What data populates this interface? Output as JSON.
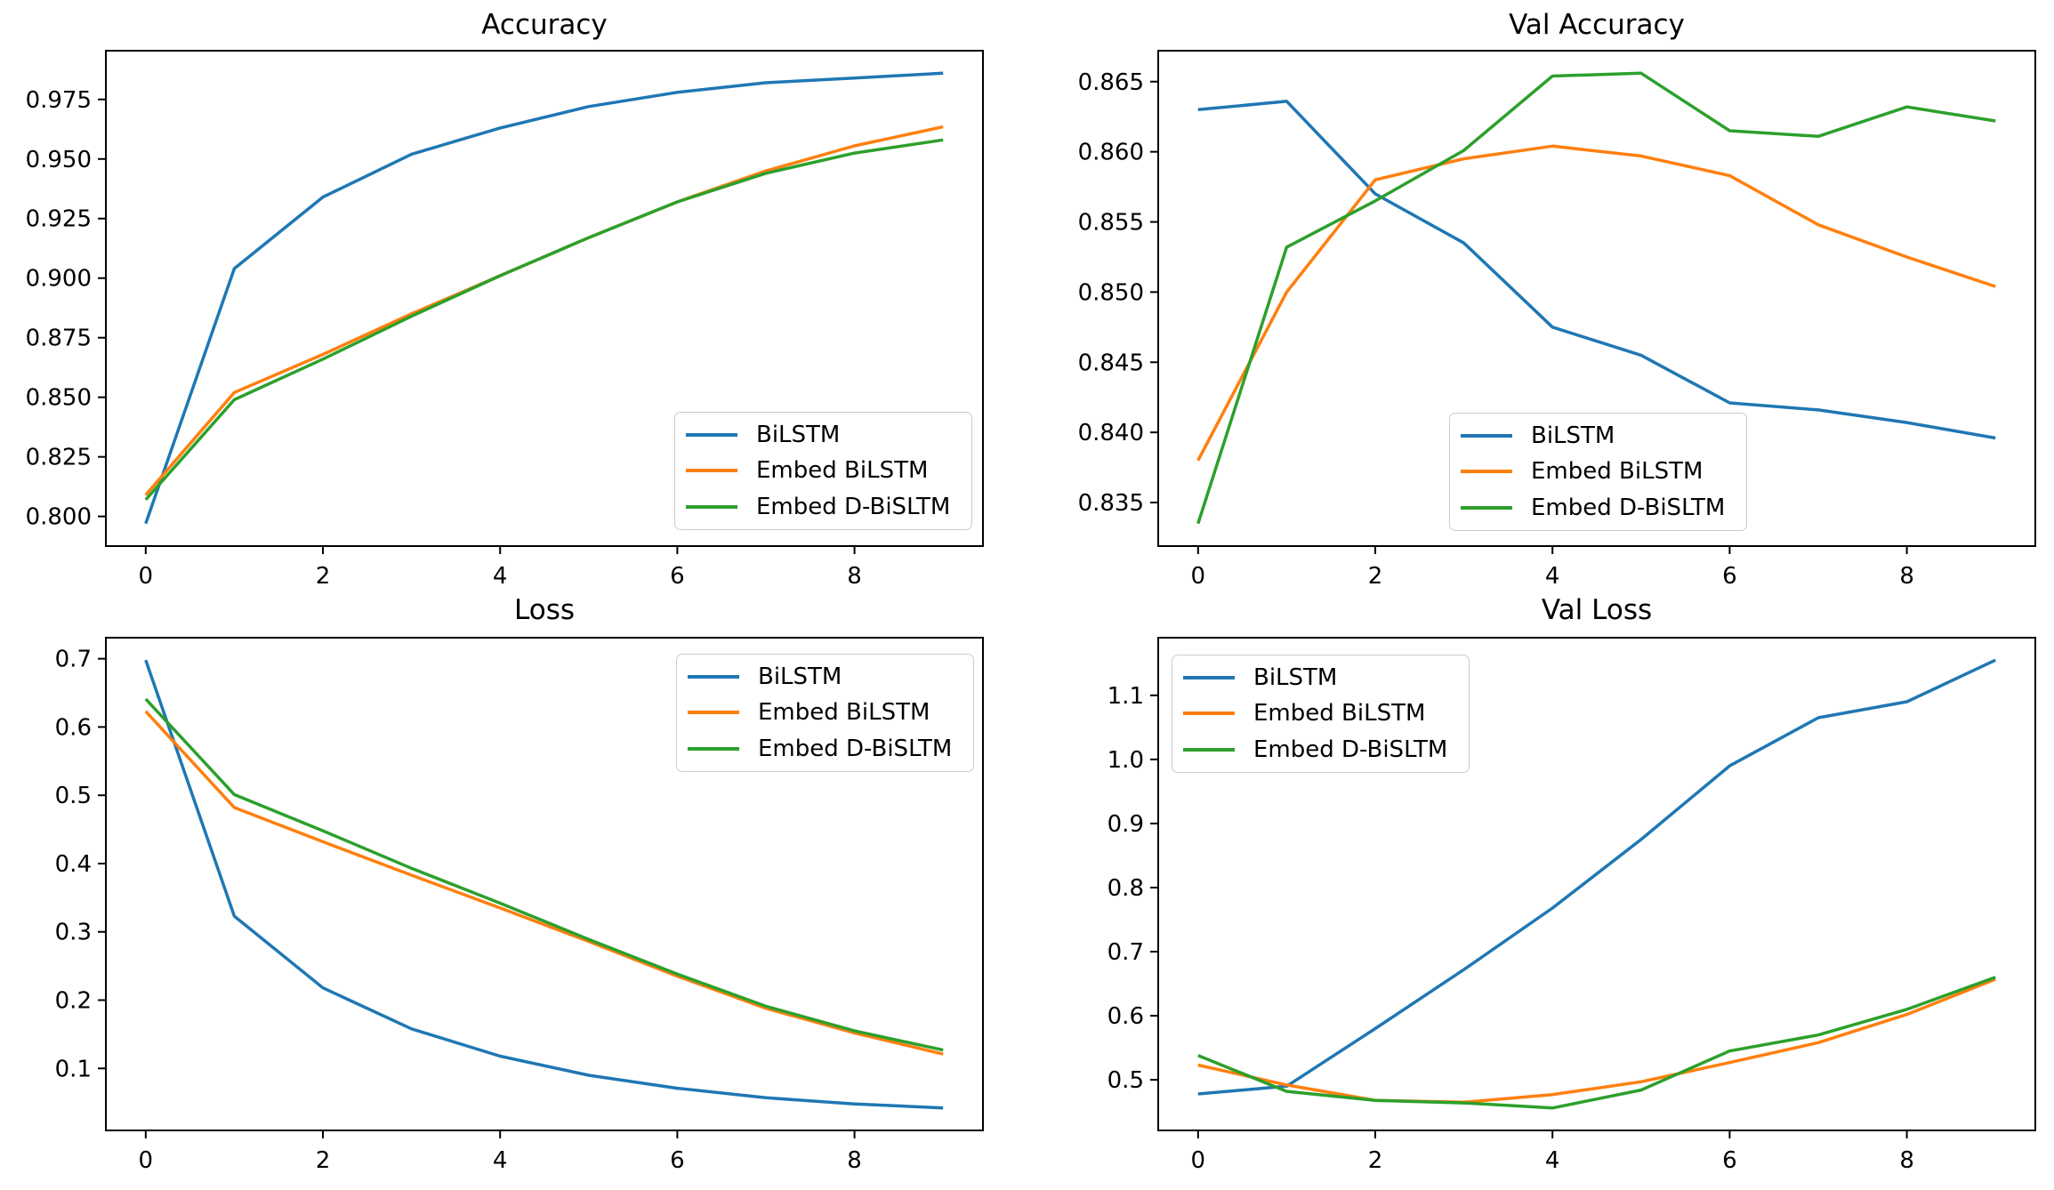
{
  "figure": {
    "background": "#ffffff",
    "text_color": "#000000",
    "spine_color": "#000000"
  },
  "chart_data": [
    {
      "type": "line",
      "title": "Accuracy",
      "xlabel": "",
      "ylabel": "",
      "grid": false,
      "legend_position": "lower right",
      "x": [
        0,
        1,
        2,
        3,
        4,
        5,
        6,
        7,
        8,
        9
      ],
      "xtick_labels": [
        "0",
        "2",
        "4",
        "6",
        "8"
      ],
      "ytick_labels": [
        "0.800",
        "0.825",
        "0.850",
        "0.875",
        "0.900",
        "0.925",
        "0.950",
        "0.975"
      ],
      "ylim": [
        0.78755,
        0.99545
      ],
      "series": [
        {
          "name": "BiLSTM",
          "color": "#1f77b4",
          "values": [
            0.797,
            0.904,
            0.934,
            0.952,
            0.963,
            0.972,
            0.978,
            0.982,
            0.984,
            0.986
          ]
        },
        {
          "name": "Embed BiLSTM",
          "color": "#ff7f0e",
          "values": [
            0.809,
            0.852,
            0.868,
            0.885,
            0.901,
            0.917,
            0.932,
            0.945,
            0.9555,
            0.9635
          ]
        },
        {
          "name": "Embed D-BiSLTM",
          "color": "#2ca02c",
          "values": [
            0.807,
            0.849,
            0.866,
            0.884,
            0.901,
            0.917,
            0.932,
            0.944,
            0.9525,
            0.958
          ]
        }
      ]
    },
    {
      "type": "line",
      "title": "Val Accuracy",
      "xlabel": "",
      "ylabel": "",
      "grid": false,
      "legend_position": "lower center",
      "x": [
        0,
        1,
        2,
        3,
        4,
        5,
        6,
        7,
        8,
        9
      ],
      "xtick_labels": [
        "0",
        "2",
        "4",
        "6",
        "8"
      ],
      "ytick_labels": [
        "0.835",
        "0.840",
        "0.845",
        "0.850",
        "0.855",
        "0.860",
        "0.865"
      ],
      "ylim": [
        0.831895,
        0.867205
      ],
      "series": [
        {
          "name": "BiLSTM",
          "color": "#1f77b4",
          "values": [
            0.863,
            0.8636,
            0.857,
            0.8535,
            0.8475,
            0.8455,
            0.8421,
            0.8416,
            0.8407,
            0.8396
          ]
        },
        {
          "name": "Embed BiLSTM",
          "color": "#ff7f0e",
          "values": [
            0.838,
            0.85,
            0.858,
            0.8595,
            0.8604,
            0.8597,
            0.8583,
            0.8548,
            0.8525,
            0.8504
          ]
        },
        {
          "name": "Embed D-BiSLTM",
          "color": "#2ca02c",
          "values": [
            0.8335,
            0.8532,
            0.8565,
            0.8601,
            0.8654,
            0.8656,
            0.8615,
            0.8611,
            0.8632,
            0.8622
          ]
        }
      ]
    },
    {
      "type": "line",
      "title": "Loss",
      "xlabel": "",
      "ylabel": "",
      "grid": false,
      "legend_position": "upper right",
      "x": [
        0,
        1,
        2,
        3,
        4,
        5,
        6,
        7,
        8,
        9
      ],
      "xtick_labels": [
        "0",
        "2",
        "4",
        "6",
        "8"
      ],
      "ytick_labels": [
        "0.1",
        "0.2",
        "0.3",
        "0.4",
        "0.5",
        "0.6",
        "0.7"
      ],
      "ylim": [
        0.0092,
        0.7308
      ],
      "series": [
        {
          "name": "BiLSTM",
          "color": "#1f77b4",
          "values": [
            0.698,
            0.323,
            0.218,
            0.158,
            0.118,
            0.09,
            0.071,
            0.057,
            0.048,
            0.042
          ]
        },
        {
          "name": "Embed BiLSTM",
          "color": "#ff7f0e",
          "values": [
            0.623,
            0.482,
            0.432,
            0.383,
            0.335,
            0.286,
            0.235,
            0.188,
            0.152,
            0.121
          ]
        },
        {
          "name": "Embed D-BiSLTM",
          "color": "#2ca02c",
          "values": [
            0.641,
            0.501,
            0.448,
            0.393,
            0.342,
            0.289,
            0.238,
            0.191,
            0.155,
            0.127
          ]
        }
      ]
    },
    {
      "type": "line",
      "title": "Val Loss",
      "xlabel": "",
      "ylabel": "",
      "grid": false,
      "legend_position": "upper left",
      "x": [
        0,
        1,
        2,
        3,
        4,
        5,
        6,
        7,
        8,
        9
      ],
      "xtick_labels": [
        "0",
        "2",
        "4",
        "6",
        "8"
      ],
      "ytick_labels": [
        "0.5",
        "0.6",
        "0.7",
        "0.8",
        "0.9",
        "1.0",
        "1.1"
      ],
      "ylim": [
        0.42105,
        1.18995
      ],
      "series": [
        {
          "name": "BiLSTM",
          "color": "#1f77b4",
          "values": [
            0.478,
            0.49,
            0.58,
            0.672,
            0.768,
            0.875,
            0.99,
            1.065,
            1.09,
            1.155
          ]
        },
        {
          "name": "Embed BiLSTM",
          "color": "#ff7f0e",
          "values": [
            0.523,
            0.492,
            0.468,
            0.465,
            0.477,
            0.497,
            0.527,
            0.558,
            0.602,
            0.657
          ]
        },
        {
          "name": "Embed D-BiSLTM",
          "color": "#2ca02c",
          "values": [
            0.538,
            0.482,
            0.468,
            0.464,
            0.456,
            0.484,
            0.545,
            0.57,
            0.61,
            0.66
          ]
        }
      ]
    }
  ]
}
